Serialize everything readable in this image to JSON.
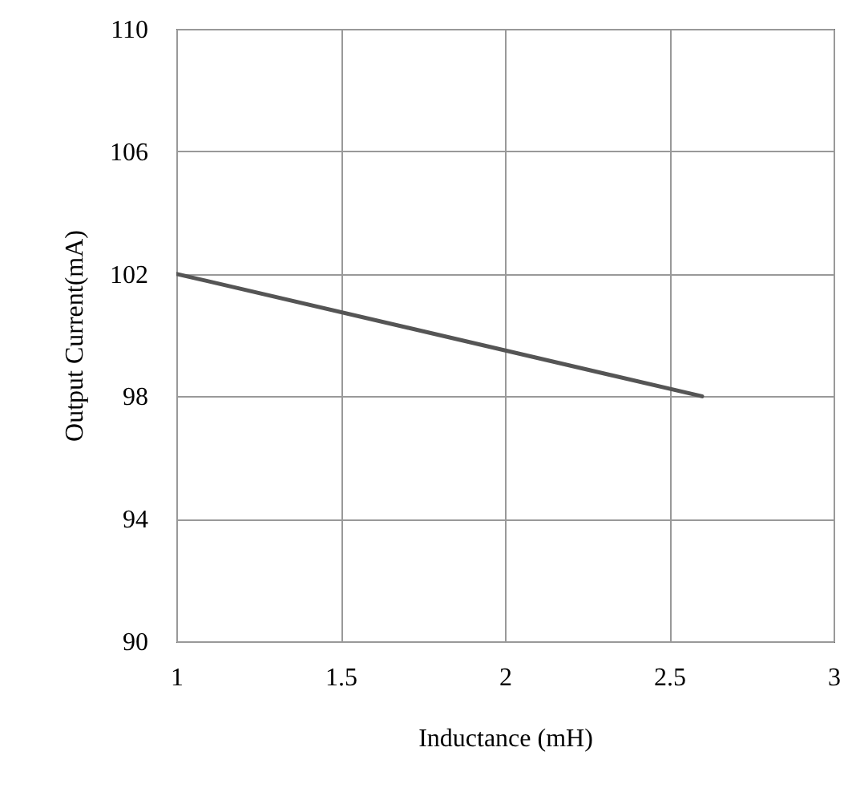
{
  "chart_data": {
    "type": "line",
    "xlabel": "Inductance (mH)",
    "ylabel": "Output Current(mA)",
    "x": [
      1,
      2.6
    ],
    "series": [
      {
        "color": "#555555",
        "values": [
          102,
          98
        ]
      }
    ],
    "xlim": [
      1,
      3
    ],
    "xticks": [
      1,
      1.5,
      2,
      2.5,
      3
    ],
    "ylim": [
      90,
      110
    ],
    "yticks": [
      90,
      94,
      98,
      102,
      106,
      110
    ],
    "grid": true,
    "marker": "none",
    "line_style": "solid"
  }
}
